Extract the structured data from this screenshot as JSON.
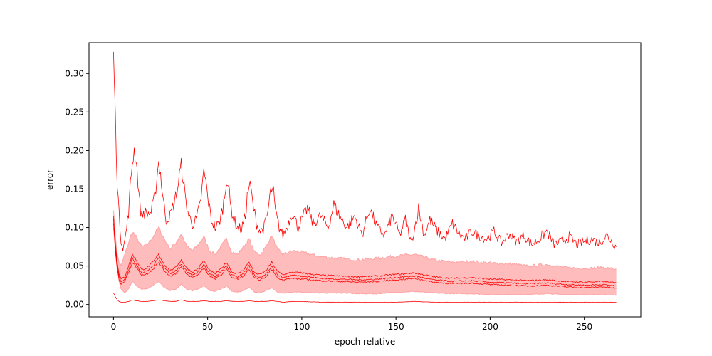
{
  "chart_data": {
    "type": "line",
    "title": "",
    "xlabel": "epoch relative",
    "ylabel": "error",
    "xlim": [
      -13,
      280
    ],
    "ylim": [
      -0.016,
      0.34
    ],
    "xticks": [
      0,
      50,
      100,
      150,
      200,
      250
    ],
    "yticks": [
      0.0,
      0.05,
      0.1,
      0.15,
      0.2,
      0.25,
      0.3
    ],
    "ytick_labels": [
      "0.00",
      "0.05",
      "0.10",
      "0.15",
      "0.20",
      "0.25",
      "0.30"
    ],
    "grid": false,
    "legend": "none",
    "colors": {
      "line": "#ff0000",
      "band": "#ffbcbc",
      "band_edge": "#ffa3a3"
    },
    "band": {
      "x": [
        0,
        1,
        2,
        3,
        4,
        6,
        8,
        10,
        12,
        15,
        18,
        21,
        24,
        27,
        30,
        33,
        36,
        39,
        42,
        45,
        48,
        51,
        54,
        57,
        60,
        63,
        66,
        69,
        72,
        75,
        78,
        81,
        84,
        87,
        90,
        95,
        100,
        110,
        120,
        130,
        140,
        150,
        160,
        170,
        180,
        190,
        200,
        210,
        220,
        230,
        240,
        250,
        260,
        267
      ],
      "upper": [
        0.125,
        0.09,
        0.065,
        0.055,
        0.05,
        0.065,
        0.08,
        0.095,
        0.088,
        0.075,
        0.078,
        0.088,
        0.1,
        0.085,
        0.072,
        0.08,
        0.092,
        0.075,
        0.07,
        0.078,
        0.088,
        0.07,
        0.065,
        0.075,
        0.085,
        0.068,
        0.065,
        0.075,
        0.085,
        0.068,
        0.065,
        0.075,
        0.09,
        0.072,
        0.065,
        0.07,
        0.068,
        0.062,
        0.06,
        0.058,
        0.06,
        0.063,
        0.065,
        0.058,
        0.055,
        0.056,
        0.054,
        0.053,
        0.05,
        0.052,
        0.048,
        0.047,
        0.048,
        0.046
      ],
      "lower": [
        0.1,
        0.07,
        0.045,
        0.03,
        0.02,
        0.015,
        0.02,
        0.03,
        0.025,
        0.02,
        0.02,
        0.025,
        0.03,
        0.022,
        0.018,
        0.02,
        0.026,
        0.02,
        0.018,
        0.02,
        0.025,
        0.018,
        0.017,
        0.02,
        0.024,
        0.017,
        0.016,
        0.018,
        0.022,
        0.016,
        0.015,
        0.018,
        0.022,
        0.016,
        0.015,
        0.016,
        0.016,
        0.015,
        0.015,
        0.014,
        0.014,
        0.016,
        0.017,
        0.015,
        0.014,
        0.014,
        0.013,
        0.013,
        0.013,
        0.014,
        0.013,
        0.013,
        0.013,
        0.012
      ]
    },
    "series": [
      {
        "x": [
          0,
          0.5,
          1,
          1.5,
          2,
          3,
          4,
          5,
          6,
          7,
          8,
          9,
          10,
          11,
          12,
          13,
          14,
          15,
          16,
          18,
          20,
          22,
          23,
          24,
          25,
          26,
          27,
          28,
          30,
          32,
          34,
          35,
          36,
          37,
          38,
          40,
          42,
          44,
          46,
          47,
          48,
          49,
          50,
          52,
          54,
          56,
          58,
          59,
          60,
          61,
          62,
          64,
          66,
          68,
          70,
          71,
          72,
          73,
          74,
          76,
          78,
          80,
          82,
          83,
          84,
          85,
          86,
          88,
          90,
          92,
          95,
          98,
          100,
          103,
          106,
          110,
          114,
          117,
          120,
          124,
          128,
          132,
          136,
          140,
          144,
          148,
          152,
          155,
          158,
          160,
          162,
          165,
          168,
          172,
          176,
          180,
          184,
          187,
          190,
          194,
          198,
          202,
          206,
          210,
          214,
          218,
          222,
          226,
          230,
          234,
          238,
          242,
          246,
          250,
          254,
          258,
          262,
          267
        ],
        "y": [
          0.32,
          0.29,
          0.24,
          0.2,
          0.16,
          0.115,
          0.085,
          0.075,
          0.082,
          0.1,
          0.12,
          0.155,
          0.185,
          0.2,
          0.19,
          0.16,
          0.13,
          0.115,
          0.12,
          0.118,
          0.12,
          0.14,
          0.165,
          0.185,
          0.17,
          0.145,
          0.125,
          0.11,
          0.115,
          0.13,
          0.15,
          0.168,
          0.18,
          0.165,
          0.14,
          0.115,
          0.105,
          0.11,
          0.13,
          0.15,
          0.172,
          0.16,
          0.14,
          0.11,
          0.1,
          0.105,
          0.125,
          0.14,
          0.165,
          0.155,
          0.13,
          0.11,
          0.1,
          0.098,
          0.115,
          0.14,
          0.155,
          0.15,
          0.13,
          0.105,
          0.095,
          0.1,
          0.12,
          0.14,
          0.15,
          0.145,
          0.12,
          0.1,
          0.09,
          0.1,
          0.12,
          0.1,
          0.11,
          0.125,
          0.105,
          0.115,
          0.1,
          0.13,
          0.115,
          0.1,
          0.115,
          0.09,
          0.125,
          0.1,
          0.09,
          0.115,
          0.09,
          0.11,
          0.08,
          0.1,
          0.125,
          0.09,
          0.11,
          0.095,
          0.085,
          0.105,
          0.09,
          0.085,
          0.095,
          0.09,
          0.085,
          0.095,
          0.08,
          0.092,
          0.082,
          0.09,
          0.078,
          0.085,
          0.095,
          0.078,
          0.082,
          0.088,
          0.078,
          0.082,
          0.085,
          0.08,
          0.09,
          0.075
        ]
      },
      {
        "x": [
          0,
          1,
          2,
          3,
          4,
          6,
          8,
          10,
          12,
          15,
          18,
          21,
          24,
          27,
          30,
          33,
          36,
          39,
          42,
          45,
          48,
          51,
          54,
          57,
          60,
          63,
          66,
          69,
          72,
          75,
          78,
          81,
          84,
          87,
          90,
          95,
          100,
          110,
          120,
          130,
          140,
          150,
          160,
          170,
          180,
          190,
          200,
          210,
          220,
          230,
          240,
          250,
          260,
          267
        ],
        "y": [
          0.115,
          0.08,
          0.055,
          0.04,
          0.033,
          0.036,
          0.05,
          0.065,
          0.058,
          0.045,
          0.048,
          0.055,
          0.065,
          0.052,
          0.044,
          0.048,
          0.058,
          0.047,
          0.042,
          0.047,
          0.057,
          0.044,
          0.04,
          0.046,
          0.055,
          0.042,
          0.04,
          0.045,
          0.055,
          0.041,
          0.039,
          0.044,
          0.055,
          0.043,
          0.039,
          0.042,
          0.041,
          0.038,
          0.037,
          0.036,
          0.037,
          0.039,
          0.041,
          0.036,
          0.034,
          0.035,
          0.033,
          0.032,
          0.031,
          0.032,
          0.03,
          0.029,
          0.03,
          0.028
        ]
      },
      {
        "x": [
          0,
          1,
          2,
          3,
          4,
          6,
          8,
          10,
          12,
          15,
          18,
          21,
          24,
          27,
          30,
          33,
          36,
          39,
          42,
          45,
          48,
          51,
          54,
          57,
          60,
          63,
          66,
          69,
          72,
          75,
          78,
          81,
          84,
          87,
          90,
          95,
          100,
          110,
          120,
          130,
          140,
          150,
          160,
          170,
          180,
          190,
          200,
          210,
          220,
          230,
          240,
          250,
          260,
          267
        ],
        "y": [
          0.11,
          0.075,
          0.05,
          0.036,
          0.03,
          0.033,
          0.045,
          0.06,
          0.053,
          0.041,
          0.044,
          0.05,
          0.06,
          0.048,
          0.04,
          0.044,
          0.053,
          0.043,
          0.038,
          0.043,
          0.052,
          0.04,
          0.036,
          0.042,
          0.05,
          0.038,
          0.036,
          0.041,
          0.05,
          0.037,
          0.035,
          0.04,
          0.05,
          0.039,
          0.035,
          0.038,
          0.037,
          0.034,
          0.033,
          0.032,
          0.033,
          0.035,
          0.037,
          0.032,
          0.03,
          0.031,
          0.029,
          0.028,
          0.027,
          0.028,
          0.026,
          0.025,
          0.026,
          0.024
        ]
      },
      {
        "x": [
          0,
          1,
          2,
          3,
          4,
          6,
          8,
          10,
          12,
          15,
          18,
          21,
          24,
          27,
          30,
          33,
          36,
          39,
          42,
          45,
          48,
          51,
          54,
          57,
          60,
          63,
          66,
          69,
          72,
          75,
          78,
          81,
          84,
          87,
          90,
          95,
          100,
          110,
          120,
          130,
          140,
          150,
          160,
          170,
          180,
          190,
          200,
          210,
          220,
          230,
          240,
          250,
          260,
          267
        ],
        "y": [
          0.105,
          0.07,
          0.045,
          0.032,
          0.027,
          0.03,
          0.041,
          0.055,
          0.049,
          0.038,
          0.04,
          0.046,
          0.055,
          0.044,
          0.037,
          0.04,
          0.049,
          0.039,
          0.035,
          0.039,
          0.048,
          0.037,
          0.033,
          0.038,
          0.046,
          0.035,
          0.033,
          0.037,
          0.046,
          0.034,
          0.032,
          0.036,
          0.046,
          0.035,
          0.032,
          0.034,
          0.033,
          0.031,
          0.03,
          0.029,
          0.03,
          0.032,
          0.034,
          0.029,
          0.027,
          0.028,
          0.026,
          0.025,
          0.024,
          0.025,
          0.023,
          0.022,
          0.023,
          0.021
        ]
      },
      {
        "x": [
          0,
          1,
          2,
          3,
          4,
          6,
          8,
          10,
          12,
          15,
          18,
          21,
          24,
          27,
          30,
          33,
          36,
          39,
          42,
          45,
          48,
          51,
          54,
          57,
          60,
          63,
          66,
          69,
          72,
          75,
          78,
          81,
          84,
          87,
          90,
          95,
          100,
          110,
          120,
          130,
          140,
          150,
          160,
          170,
          180,
          190,
          200,
          210,
          220,
          230,
          240,
          250,
          260,
          267
        ],
        "y": [
          0.015,
          0.01,
          0.006,
          0.004,
          0.003,
          0.003,
          0.004,
          0.006,
          0.005,
          0.004,
          0.004,
          0.005,
          0.006,
          0.005,
          0.004,
          0.004,
          0.006,
          0.004,
          0.004,
          0.004,
          0.005,
          0.004,
          0.004,
          0.004,
          0.005,
          0.004,
          0.004,
          0.004,
          0.005,
          0.004,
          0.004,
          0.004,
          0.005,
          0.004,
          0.003,
          0.004,
          0.004,
          0.003,
          0.003,
          0.003,
          0.003,
          0.003,
          0.004,
          0.003,
          0.003,
          0.003,
          0.003,
          0.003,
          0.003,
          0.003,
          0.003,
          0.003,
          0.003,
          0.003
        ]
      }
    ]
  }
}
